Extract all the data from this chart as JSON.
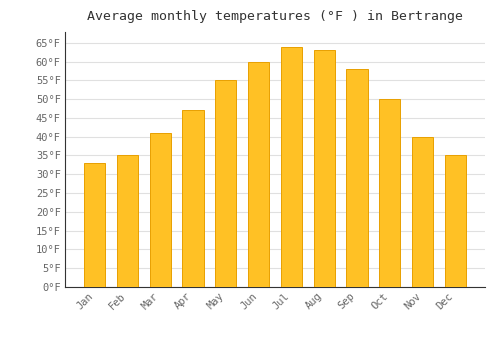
{
  "title": "Average monthly temperatures (°F ) in Bertrange",
  "months": [
    "Jan",
    "Feb",
    "Mar",
    "Apr",
    "May",
    "Jun",
    "Jul",
    "Aug",
    "Sep",
    "Oct",
    "Nov",
    "Dec"
  ],
  "values": [
    33,
    35,
    41,
    47,
    55,
    60,
    64,
    63,
    58,
    50,
    40,
    35
  ],
  "bar_color_face": "#FFC125",
  "bar_color_edge": "#E8A000",
  "ylim": [
    0,
    68
  ],
  "yticks": [
    0,
    5,
    10,
    15,
    20,
    25,
    30,
    35,
    40,
    45,
    50,
    55,
    60,
    65
  ],
  "ylabel_suffix": "°F",
  "background_color": "#ffffff",
  "grid_color": "#e0e0e0",
  "title_fontsize": 9.5,
  "tick_fontsize": 7.5,
  "font_family": "monospace",
  "tick_color": "#666666",
  "title_color": "#333333"
}
